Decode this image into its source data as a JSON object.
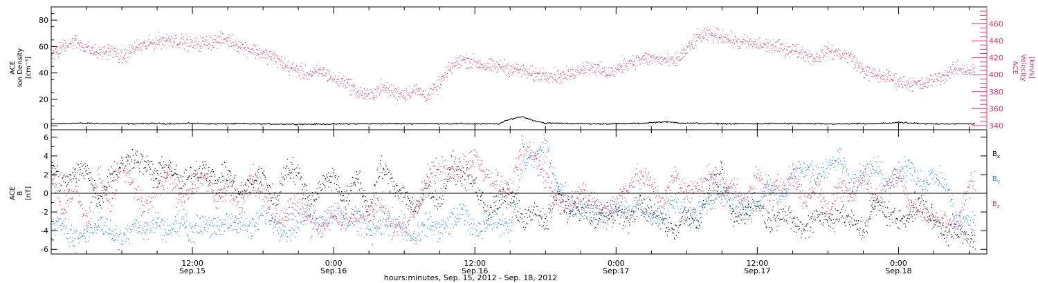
{
  "colors": {
    "black": "#000000",
    "pink": "#e8336b",
    "blue": "#1e88e5"
  },
  "chart_data": [
    {
      "type": "scatter",
      "panel": "top",
      "ylabel_lines": [
        "ACE",
        "Ion Density",
        "[cm⁻³]"
      ],
      "ylim": [
        -3,
        90
      ],
      "yticks": [
        0,
        20,
        40,
        60,
        80
      ],
      "y2label_lines": [
        "ACE",
        "Velocity",
        "[km/s]"
      ],
      "y2lim": [
        335,
        480
      ],
      "y2ticks": [
        340,
        360,
        380,
        400,
        420,
        440,
        460
      ],
      "y2tick_labels": [
        "340",
        "360",
        "380",
        "400",
        "420",
        "440",
        "460"
      ],
      "series": [
        {
          "axis": "left",
          "color": "#000000",
          "x_hours": [
            0,
            2,
            4,
            6,
            8,
            10,
            12,
            14,
            16,
            18,
            20,
            22,
            24,
            26,
            28,
            30,
            32,
            34,
            36,
            38,
            39,
            40,
            41,
            42,
            44,
            46,
            48,
            50,
            52,
            54,
            56,
            58,
            60,
            62,
            64,
            66,
            68,
            70,
            72,
            74,
            76,
            78
          ],
          "values": [
            1.5,
            2,
            1.8,
            1.5,
            1.7,
            1.6,
            1.8,
            1.5,
            1.6,
            1.4,
            1.3,
            1.2,
            1.3,
            1.5,
            1.7,
            1.6,
            1.8,
            1.6,
            1.5,
            1.4,
            5,
            7,
            4,
            2,
            1.8,
            1.5,
            1.6,
            1.8,
            3,
            2,
            1.7,
            1.5,
            1.6,
            1.8,
            1.6,
            1.4,
            1.5,
            1.6,
            2.5,
            1.5,
            1.5,
            1.5
          ]
        },
        {
          "axis": "right",
          "color": "#e8336b",
          "x_hours": [
            0,
            1,
            2,
            3,
            4,
            5,
            6,
            7,
            8,
            9,
            10,
            11,
            12,
            13,
            14,
            15,
            16,
            17,
            18,
            19,
            20,
            21,
            22,
            23,
            24,
            25,
            26,
            27,
            28,
            29,
            30,
            31,
            32,
            33,
            34,
            35,
            36,
            37,
            38,
            39,
            40,
            41,
            42,
            43,
            44,
            45,
            46,
            47,
            48,
            49,
            50,
            51,
            52,
            53,
            54,
            55,
            56,
            57,
            58,
            59,
            60,
            61,
            62,
            63,
            64,
            65,
            66,
            67,
            68,
            69,
            70,
            71,
            72,
            73,
            74,
            75,
            76,
            77,
            78
          ],
          "values": [
            420,
            435,
            440,
            432,
            425,
            430,
            420,
            432,
            435,
            440,
            442,
            440,
            436,
            438,
            440,
            442,
            434,
            430,
            425,
            420,
            410,
            405,
            400,
            405,
            395,
            392,
            380,
            375,
            385,
            380,
            378,
            382,
            375,
            390,
            410,
            418,
            415,
            410,
            410,
            408,
            405,
            400,
            402,
            398,
            400,
            408,
            410,
            402,
            405,
            415,
            418,
            420,
            418,
            415,
            430,
            445,
            448,
            446,
            440,
            438,
            436,
            434,
            432,
            430,
            425,
            420,
            428,
            425,
            420,
            405,
            400,
            398,
            392,
            390,
            388,
            395,
            400,
            408,
            405
          ]
        }
      ]
    },
    {
      "type": "scatter",
      "panel": "bottom",
      "ylabel_lines": [
        "ACE",
        "B",
        "[nT]"
      ],
      "ylim": [
        -6.5,
        6.8
      ],
      "yticks": [
        -6,
        -4,
        -2,
        0,
        2,
        4,
        6
      ],
      "zero_line": true,
      "legend": [
        "B",
        "B",
        "B"
      ],
      "legend_subscripts": [
        "x",
        "y",
        "z"
      ],
      "x": {
        "major_ticks_hours": [
          12,
          24,
          36,
          48,
          60,
          72
        ],
        "tick_labels_top": [
          "12:00",
          "0:00",
          "12:00",
          "0:00",
          "12:00",
          "0:00"
        ],
        "tick_labels_bottom": [
          "Sep.15",
          "Sep.16",
          "Sep.16",
          "Sep.17",
          "Sep.17",
          "Sep.18"
        ],
        "xlim_hours": [
          0,
          79.5
        ],
        "title": "hours:minutes, Sep. 15, 2012 - Sep. 18, 2012"
      },
      "series": [
        {
          "name": "Bx",
          "color": "#000000",
          "x_hours": [
            0,
            1,
            2,
            3,
            4,
            5,
            6,
            7,
            8,
            9,
            10,
            11,
            12,
            13,
            14,
            15,
            16,
            17,
            18,
            19,
            20,
            21,
            22,
            23,
            24,
            25,
            26,
            27,
            28,
            29,
            30,
            31,
            32,
            33,
            34,
            35,
            36,
            37,
            38,
            39,
            40,
            41,
            42,
            43,
            44,
            45,
            46,
            47,
            48,
            49,
            50,
            51,
            52,
            53,
            54,
            55,
            56,
            57,
            58,
            59,
            60,
            61,
            62,
            63,
            64,
            65,
            66,
            67,
            68,
            69,
            70,
            71,
            72,
            73,
            74,
            75,
            76,
            77,
            78
          ],
          "values": [
            3,
            1,
            2,
            3,
            -1,
            2,
            3,
            4,
            3,
            2,
            3,
            1,
            2,
            3,
            1,
            2,
            0,
            1,
            2,
            -1,
            3,
            2,
            -1,
            1,
            2,
            -1,
            2,
            -2,
            3,
            1,
            0,
            -2,
            1,
            -1,
            3,
            2,
            1,
            -2,
            -1,
            0,
            -3,
            -2,
            -3,
            0,
            -2,
            -1,
            -3,
            -2,
            -2,
            -3,
            -1,
            -2,
            -3,
            -4,
            -2,
            -3,
            1,
            2,
            -3,
            -2,
            -1,
            -3,
            -2,
            -3,
            -4,
            -2,
            -3,
            -2,
            -3,
            -4,
            -1,
            -2,
            -3,
            -2,
            -1,
            -3,
            -4,
            -4,
            -5
          ]
        },
        {
          "name": "By",
          "color": "#1e88e5",
          "x_hours": [
            0,
            1,
            2,
            3,
            4,
            5,
            6,
            7,
            8,
            9,
            10,
            11,
            12,
            13,
            14,
            15,
            16,
            17,
            18,
            19,
            20,
            21,
            22,
            23,
            24,
            25,
            26,
            27,
            28,
            29,
            30,
            31,
            32,
            33,
            34,
            35,
            36,
            37,
            38,
            39,
            40,
            41,
            42,
            43,
            44,
            45,
            46,
            47,
            48,
            49,
            50,
            51,
            52,
            53,
            54,
            55,
            56,
            57,
            58,
            59,
            60,
            61,
            62,
            63,
            64,
            65,
            66,
            67,
            68,
            69,
            70,
            71,
            72,
            73,
            74,
            75,
            76,
            77,
            78
          ],
          "values": [
            -4,
            -3,
            -5,
            -4,
            -3,
            -4,
            -5,
            -3,
            -4,
            -3,
            -4,
            -3,
            -4,
            -3,
            -4,
            -3,
            -3,
            -4,
            -2,
            -3,
            -4,
            -3,
            -2,
            -3,
            -2,
            -3,
            -2,
            -4,
            -3,
            -3,
            -4,
            -5,
            -3,
            -4,
            -3,
            -2,
            -4,
            -3,
            -3,
            -4,
            3,
            4,
            5,
            1,
            -1,
            -2,
            -1,
            -3,
            -1,
            -2,
            -1,
            -3,
            -2,
            -1,
            -2,
            -2,
            -1,
            0,
            -1,
            -2,
            -1,
            1,
            -1,
            2,
            3,
            2,
            3,
            4,
            1,
            2,
            3,
            1,
            2,
            3,
            1,
            2,
            1,
            -3,
            -3
          ]
        },
        {
          "name": "Bz",
          "color": "#e8336b",
          "x_hours": [
            0,
            1,
            2,
            3,
            4,
            5,
            6,
            7,
            8,
            9,
            10,
            11,
            12,
            13,
            14,
            15,
            16,
            17,
            18,
            19,
            20,
            21,
            22,
            23,
            24,
            25,
            26,
            27,
            28,
            29,
            30,
            31,
            32,
            33,
            34,
            35,
            36,
            37,
            38,
            39,
            40,
            41,
            42,
            43,
            44,
            45,
            46,
            47,
            48,
            49,
            50,
            51,
            52,
            53,
            54,
            55,
            56,
            57,
            58,
            59,
            60,
            61,
            62,
            63,
            64,
            65,
            66,
            67,
            68,
            69,
            70,
            71,
            72,
            73,
            74,
            75,
            76,
            77,
            78
          ],
          "values": [
            2,
            -2,
            1,
            -3,
            2,
            -1,
            3,
            1,
            -2,
            1,
            2,
            -1,
            1,
            2,
            -1,
            1,
            -2,
            2,
            0,
            -3,
            -2,
            -1,
            -3,
            -4,
            -2,
            -3,
            -3,
            -2,
            -1,
            -4,
            -3,
            -2,
            2,
            3,
            2,
            3,
            4,
            2,
            1,
            0,
            5,
            4,
            2,
            -1,
            -1,
            0,
            -1,
            -2,
            -1,
            1,
            2,
            1,
            -1,
            2,
            0,
            1,
            2,
            0,
            1,
            -1,
            2,
            0,
            1,
            2,
            -1,
            1,
            -2,
            1,
            0,
            2,
            -1,
            1,
            2,
            -1,
            -2,
            -3,
            -3,
            -3,
            1
          ]
        }
      ]
    }
  ]
}
